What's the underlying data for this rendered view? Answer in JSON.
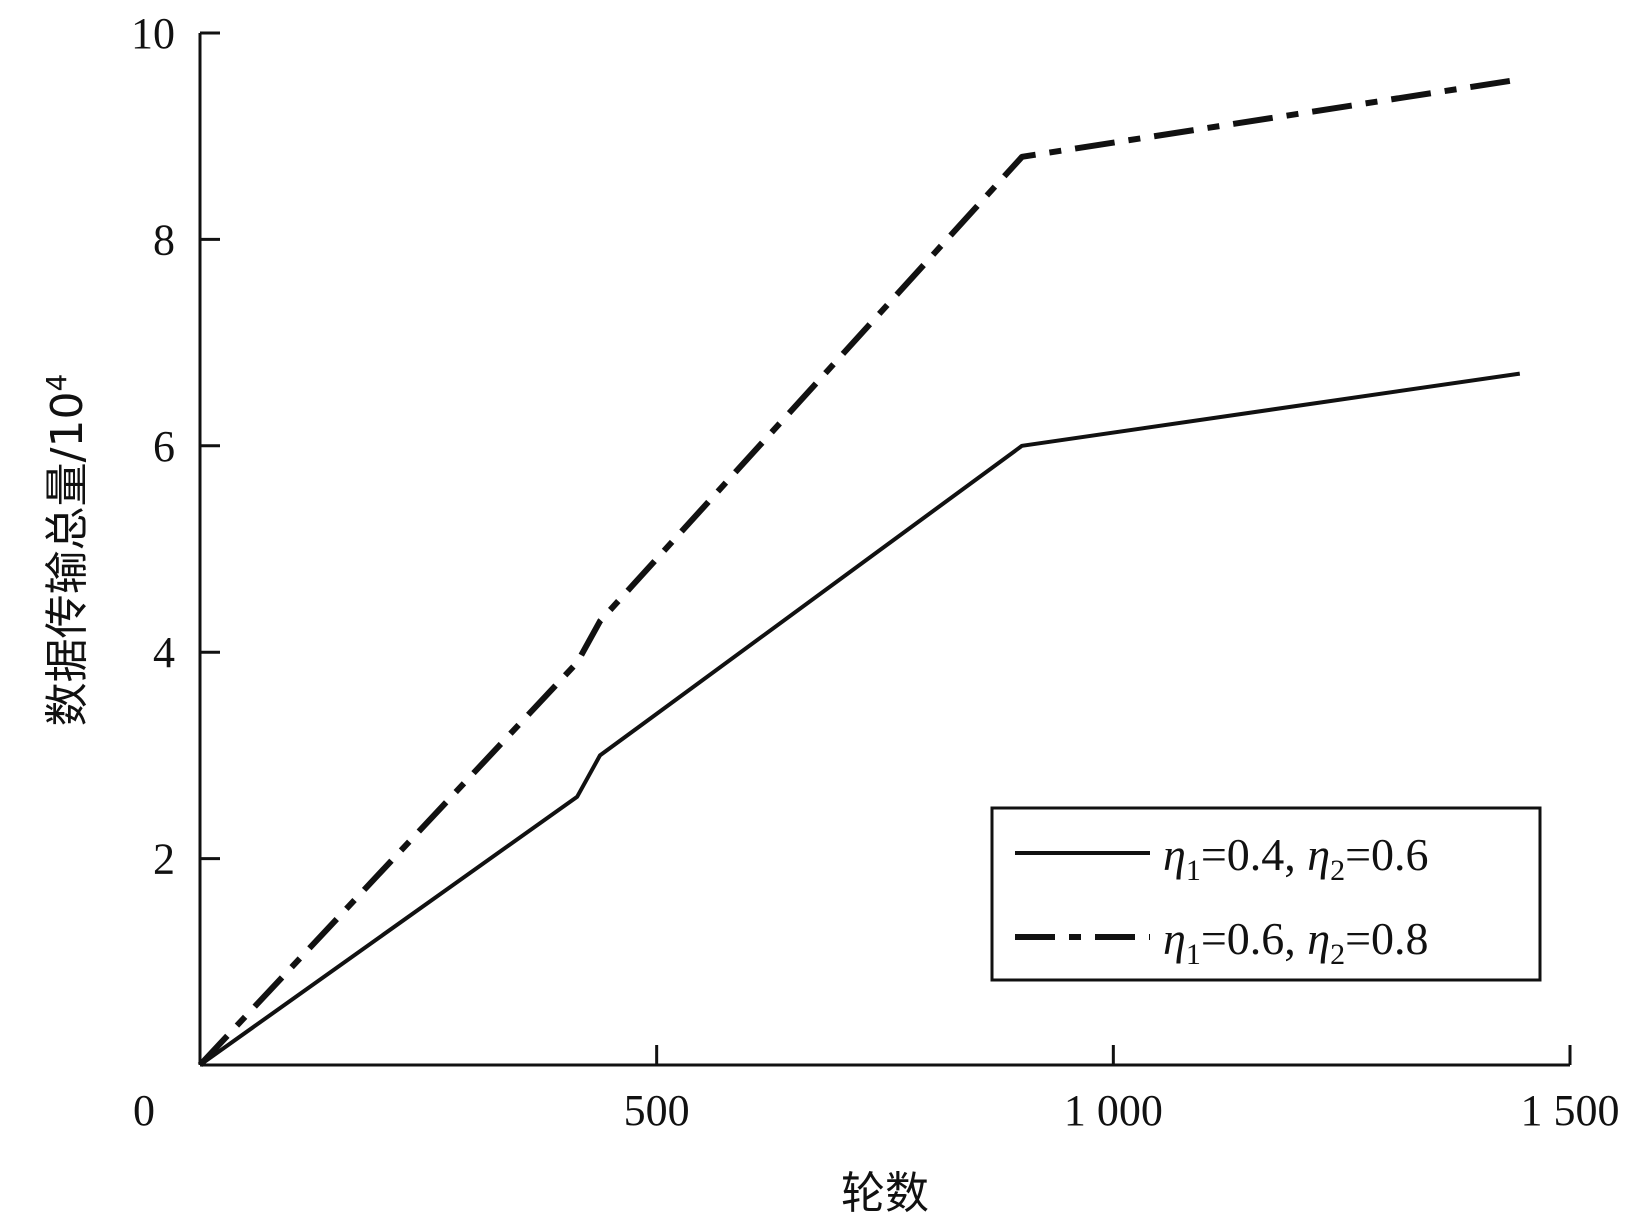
{
  "chart_data": {
    "type": "line",
    "title": "",
    "xlabel": "轮数",
    "ylabel_main": "数据传输总量/10",
    "ylabel_exp": "4",
    "xlim": [
      0,
      1500
    ],
    "ylim": [
      0,
      10
    ],
    "x_ticks": [
      {
        "value": 0,
        "label": "0"
      },
      {
        "value": 500,
        "label": "500"
      },
      {
        "value": 1000,
        "label": "1 000"
      },
      {
        "value": 1500,
        "label": "1 500"
      }
    ],
    "y_ticks": [
      {
        "value": 2,
        "label": "2"
      },
      {
        "value": 4,
        "label": "4"
      },
      {
        "value": 6,
        "label": "6"
      },
      {
        "value": 8,
        "label": "8"
      },
      {
        "value": 10,
        "label": "10"
      }
    ],
    "grid": false,
    "legend_position": "bottom-right",
    "series": [
      {
        "style": "solid",
        "legend": {
          "eta1_value": "=0.4, ",
          "eta2_value": "=0.6"
        },
        "x": [
          0,
          413,
          438,
          900,
          1445
        ],
        "y": [
          0,
          2.6,
          3.0,
          6.0,
          6.7
        ]
      },
      {
        "style": "dash-dot",
        "legend": {
          "eta1_value": "=0.6, ",
          "eta2_value": "=0.8"
        },
        "x": [
          0,
          413,
          438,
          900,
          1445
        ],
        "y": [
          0,
          3.9,
          4.3,
          8.8,
          9.55
        ]
      }
    ],
    "colors": {
      "line": "#111111",
      "axis": "#111111",
      "background": "#ffffff"
    }
  }
}
